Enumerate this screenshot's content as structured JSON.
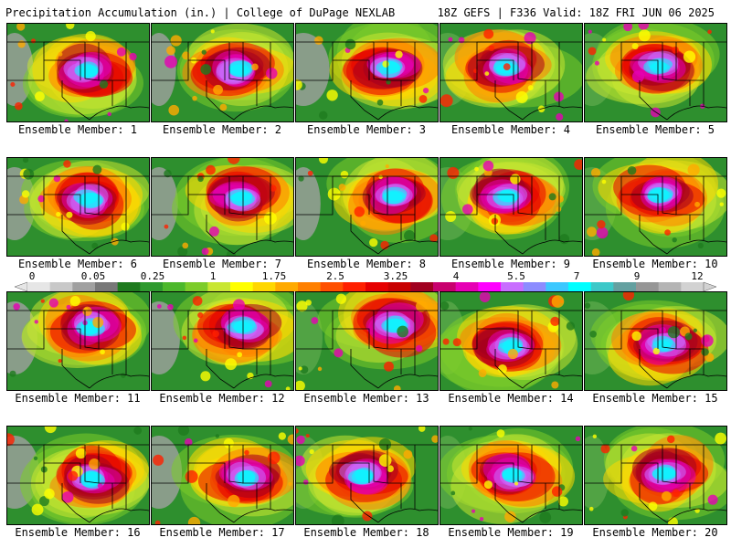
{
  "header": {
    "title": "Precipitation Accumulation (in.) | College of DuPage NEXLAB",
    "run_info": "18Z GEFS | F336 Valid: 18Z FRI JUN 06 2025"
  },
  "panels": [
    {
      "label": "Ensemble Member: 1"
    },
    {
      "label": "Ensemble Member: 2"
    },
    {
      "label": "Ensemble Member: 3"
    },
    {
      "label": "Ensemble Member: 4"
    },
    {
      "label": "Ensemble Member: 5"
    },
    {
      "label": "Ensemble Member: 6"
    },
    {
      "label": "Ensemble Member: 7"
    },
    {
      "label": "Ensemble Member: 8"
    },
    {
      "label": "Ensemble Member: 9"
    },
    {
      "label": "Ensemble Member: 10"
    },
    {
      "label": "Ensemble Member: 11"
    },
    {
      "label": "Ensemble Member: 12"
    },
    {
      "label": "Ensemble Member: 13"
    },
    {
      "label": "Ensemble Member: 14"
    },
    {
      "label": "Ensemble Member: 15"
    },
    {
      "label": "Ensemble Member: 16"
    },
    {
      "label": "Ensemble Member: 17"
    },
    {
      "label": "Ensemble Member: 18"
    },
    {
      "label": "Ensemble Member: 19"
    },
    {
      "label": "Ensemble Member: 20"
    }
  ],
  "colorbar": {
    "ticks": [
      "0",
      "0.05",
      "0.25",
      "1",
      "1.75",
      "2.5",
      "3.25",
      "4",
      "5.5",
      "7",
      "9",
      "12"
    ],
    "colors": [
      "#e6e6e6",
      "#c8c8c8",
      "#a0a0a0",
      "#787878",
      "#1e7a1e",
      "#2e9a2e",
      "#4cb82c",
      "#7ccc2a",
      "#c8e632",
      "#ffff00",
      "#ffd700",
      "#ffaa00",
      "#ff8000",
      "#ff5000",
      "#ff2000",
      "#e60000",
      "#c80000",
      "#a00020",
      "#c8006e",
      "#e600b4",
      "#ff00ff",
      "#c86eff",
      "#8c8cff",
      "#3cc8ff",
      "#00ffff",
      "#3cc8c8",
      "#64a0a0",
      "#969696",
      "#b4b4b4",
      "#d2d2d2"
    ]
  }
}
